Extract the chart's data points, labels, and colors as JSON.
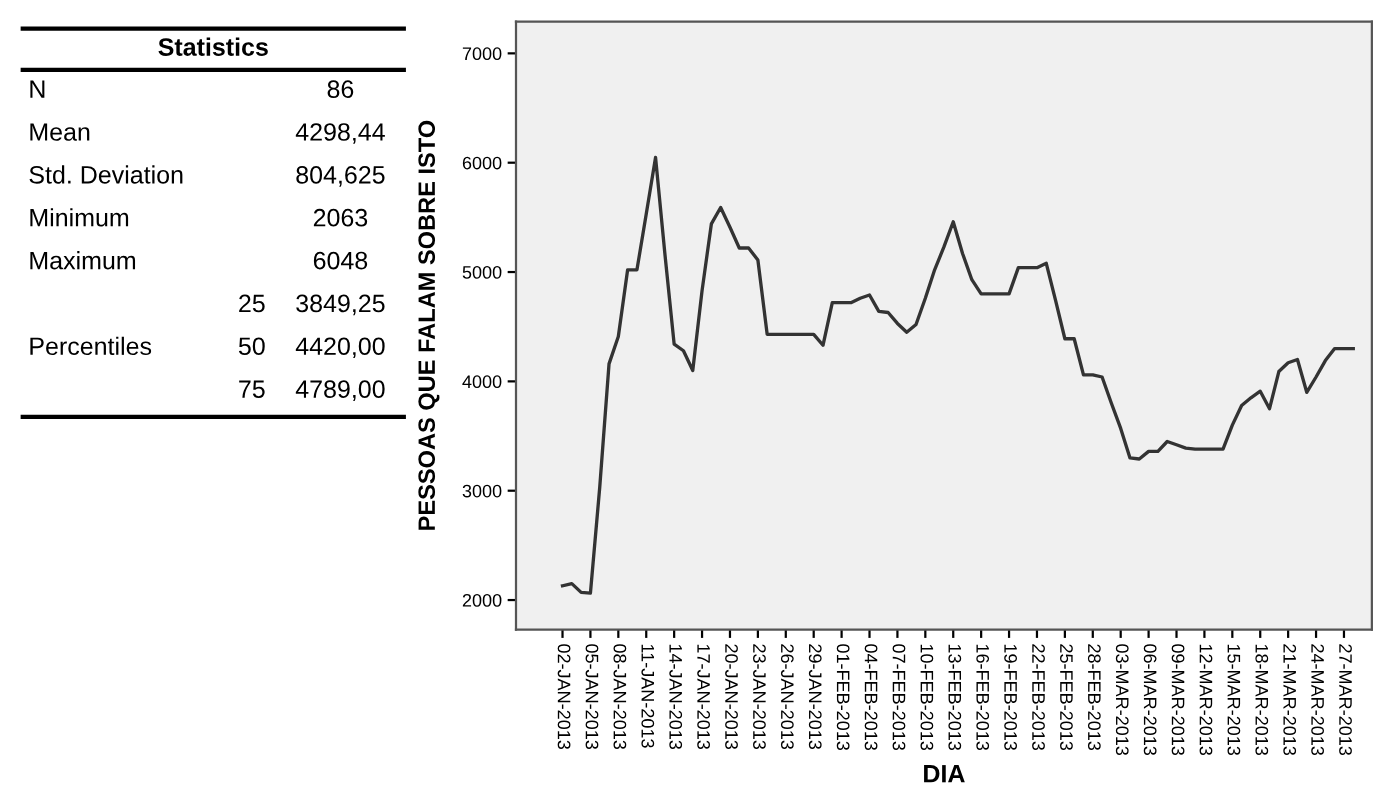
{
  "chart_data": [
    {
      "type": "other",
      "title": "Statistics",
      "cell_labels": [
        [
          "N",
          null,
          "86"
        ],
        [
          "Mean",
          null,
          "4298,44"
        ],
        [
          "Std. Deviation",
          null,
          "804,625"
        ],
        [
          "Minimum",
          null,
          "2063"
        ],
        [
          "Maximum",
          null,
          "6048"
        ],
        [
          null,
          "25",
          "3849,25"
        ],
        [
          "Percentiles",
          "50",
          "4420,00"
        ],
        [
          null,
          "75",
          "4789,00"
        ]
      ]
    },
    {
      "type": "line",
      "xlabel": "DIA",
      "ylabel": "PESSOAS QUE FALAM SOBRE ISTO",
      "grid": false,
      "marker": "none",
      "line_style": "solid",
      "x": [
        "2013-01-02",
        "2013-01-03",
        "2013-01-04",
        "2013-01-05",
        "2013-01-06",
        "2013-01-07",
        "2013-01-08",
        "2013-01-09",
        "2013-01-10",
        "2013-01-11",
        "2013-01-12",
        "2013-01-13",
        "2013-01-14",
        "2013-01-15",
        "2013-01-16",
        "2013-01-17",
        "2013-01-18",
        "2013-01-19",
        "2013-01-20",
        "2013-01-21",
        "2013-01-22",
        "2013-01-23",
        "2013-01-24",
        "2013-01-25",
        "2013-01-26",
        "2013-01-27",
        "2013-01-28",
        "2013-01-29",
        "2013-01-30",
        "2013-01-31",
        "2013-02-01",
        "2013-02-02",
        "2013-02-03",
        "2013-02-04",
        "2013-02-05",
        "2013-02-06",
        "2013-02-07",
        "2013-02-08",
        "2013-02-09",
        "2013-02-10",
        "2013-02-11",
        "2013-02-12",
        "2013-02-13",
        "2013-02-14",
        "2013-02-15",
        "2013-02-16",
        "2013-02-17",
        "2013-02-18",
        "2013-02-19",
        "2013-02-20",
        "2013-02-21",
        "2013-02-22",
        "2013-02-23",
        "2013-02-24",
        "2013-02-25",
        "2013-02-26",
        "2013-02-27",
        "2013-02-28",
        "2013-03-01",
        "2013-03-02",
        "2013-03-03",
        "2013-03-04",
        "2013-03-05",
        "2013-03-06",
        "2013-03-07",
        "2013-03-08",
        "2013-03-09",
        "2013-03-10",
        "2013-03-11",
        "2013-03-12",
        "2013-03-13",
        "2013-03-14",
        "2013-03-15",
        "2013-03-16",
        "2013-03-17",
        "2013-03-18",
        "2013-03-19",
        "2013-03-20",
        "2013-03-21",
        "2013-03-22",
        "2013-03-23",
        "2013-03-24",
        "2013-03-25",
        "2013-03-26",
        "2013-03-27",
        "2013-03-28"
      ],
      "series": [
        {
          "color": "#333333",
          "values": [
            2130,
            2150,
            2070,
            2063,
            3030,
            4160,
            4410,
            5020,
            5020,
            5530,
            6048,
            5170,
            4340,
            4280,
            4100,
            4830,
            5440,
            5590,
            5410,
            5220,
            5220,
            5110,
            4430,
            4430,
            4430,
            4430,
            4430,
            4430,
            4330,
            4720,
            4720,
            4720,
            4760,
            4790,
            4640,
            4630,
            4530,
            4450,
            4520,
            4760,
            5020,
            5230,
            5460,
            5170,
            4930,
            4800,
            4800,
            4800,
            4800,
            5040,
            5040,
            5040,
            5080,
            4740,
            4390,
            4390,
            4060,
            4060,
            4040,
            3800,
            3570,
            3300,
            3290,
            3360,
            3360,
            3450,
            3420,
            3390,
            3380,
            3380,
            3380,
            3380,
            3600,
            3780,
            3850,
            3910,
            3750,
            4090,
            4170,
            4200,
            3900,
            4040,
            4190,
            4300,
            4300,
            4300
          ]
        }
      ],
      "ylim": [
        1730,
        7290
      ],
      "yticks": [
        2000,
        3000,
        4000,
        5000,
        6000,
        7000
      ],
      "xlim": [
        "2012-12-28",
        "2013-03-30"
      ],
      "xticks": [
        {
          "value": "2013-01-02",
          "label": "02-JAN-2013"
        },
        {
          "value": "2013-01-05",
          "label": "05-JAN-2013"
        },
        {
          "value": "2013-01-08",
          "label": "08-JAN-2013"
        },
        {
          "value": "2013-01-11",
          "label": "11-JAN-2013"
        },
        {
          "value": "2013-01-14",
          "label": "14-JAN-2013"
        },
        {
          "value": "2013-01-17",
          "label": "17-JAN-2013"
        },
        {
          "value": "2013-01-20",
          "label": "20-JAN-2013"
        },
        {
          "value": "2013-01-23",
          "label": "23-JAN-2013"
        },
        {
          "value": "2013-01-26",
          "label": "26-JAN-2013"
        },
        {
          "value": "2013-01-29",
          "label": "29-JAN-2013"
        },
        {
          "value": "2013-02-01",
          "label": "01-FEB-2013"
        },
        {
          "value": "2013-02-04",
          "label": "04-FEB-2013"
        },
        {
          "value": "2013-02-07",
          "label": "07-FEB-2013"
        },
        {
          "value": "2013-02-10",
          "label": "10-FEB-2013"
        },
        {
          "value": "2013-02-13",
          "label": "13-FEB-2013"
        },
        {
          "value": "2013-02-16",
          "label": "16-FEB-2013"
        },
        {
          "value": "2013-02-19",
          "label": "19-FEB-2013"
        },
        {
          "value": "2013-02-22",
          "label": "22-FEB-2013"
        },
        {
          "value": "2013-02-25",
          "label": "25-FEB-2013"
        },
        {
          "value": "2013-02-28",
          "label": "28-FEB-2013"
        },
        {
          "value": "2013-03-03",
          "label": "03-MAR-2013"
        },
        {
          "value": "2013-03-06",
          "label": "06-MAR-2013"
        },
        {
          "value": "2013-03-09",
          "label": "09-MAR-2013"
        },
        {
          "value": "2013-03-12",
          "label": "12-MAR-2013"
        },
        {
          "value": "2013-03-15",
          "label": "15-MAR-2013"
        },
        {
          "value": "2013-03-18",
          "label": "18-MAR-2013"
        },
        {
          "value": "2013-03-21",
          "label": "21-MAR-2013"
        },
        {
          "value": "2013-03-24",
          "label": "24-MAR-2013"
        },
        {
          "value": "2013-03-27",
          "label": "27-MAR-2013"
        }
      ]
    }
  ]
}
